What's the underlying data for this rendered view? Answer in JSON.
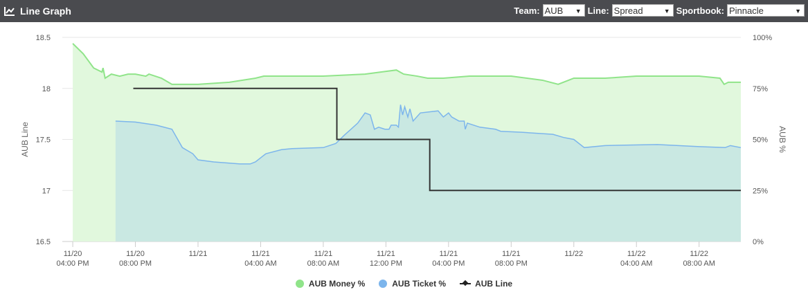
{
  "header": {
    "title": "Line Graph",
    "icon": "line-chart-icon",
    "team_label": "Team:",
    "team_value": "AUB",
    "line_label": "Line:",
    "line_value": "Spread",
    "sportsbook_label": "Sportbook:",
    "sportsbook_value": "Pinnacle"
  },
  "colors": {
    "money": "#90e48a",
    "money_fill": "#e1f8dd",
    "ticket": "#7cb5ec",
    "ticket_fill": "#c9e8e2",
    "line": "#333333",
    "header_bg": "#4a4b4f"
  },
  "chart_data": {
    "type": "line",
    "title": "",
    "xlabel": "",
    "ylabel": "AUB Line",
    "ylabel_right": "AUB %",
    "ylim": [
      16.5,
      18.5
    ],
    "y_ticks": [
      "18.5",
      "18",
      "17.5",
      "17",
      "16.5"
    ],
    "ylim_right": [
      0,
      100
    ],
    "y_ticks_right": [
      "100%",
      "75%",
      "50%",
      "25%",
      "0%"
    ],
    "x_range_hours": [
      -1,
      64
    ],
    "x_ticks": [
      {
        "t": 0,
        "l1": "11/20",
        "l2": "04:00 PM"
      },
      {
        "t": 6,
        "l1": "11/20",
        "l2": "08:00 PM"
      },
      {
        "t": 12,
        "l1": "11/21",
        "l2": ""
      },
      {
        "t": 18,
        "l1": "11/21",
        "l2": "04:00 AM"
      },
      {
        "t": 24,
        "l1": "11/21",
        "l2": "08:00 AM"
      },
      {
        "t": 30,
        "l1": "11/21",
        "l2": "12:00 PM"
      },
      {
        "t": 36,
        "l1": "11/21",
        "l2": "04:00 PM"
      },
      {
        "t": 42,
        "l1": "11/21",
        "l2": "08:00 PM"
      },
      {
        "t": 48,
        "l1": "11/22",
        "l2": ""
      },
      {
        "t": 54,
        "l1": "11/22",
        "l2": "04:00 AM"
      },
      {
        "t": 60,
        "l1": "11/22",
        "l2": "08:00 AM"
      }
    ],
    "grid": true,
    "legend_position": "bottom",
    "series": [
      {
        "name": "AUB Money %",
        "axis": "right",
        "points": [
          [
            0,
            97
          ],
          [
            1,
            92
          ],
          [
            2,
            85
          ],
          [
            2.8,
            83
          ],
          [
            2.9,
            85
          ],
          [
            3.1,
            80
          ],
          [
            3.7,
            82
          ],
          [
            4.5,
            81
          ],
          [
            5.3,
            82
          ],
          [
            6,
            82
          ],
          [
            7,
            81
          ],
          [
            7.3,
            82
          ],
          [
            8.5,
            80
          ],
          [
            9.5,
            77
          ],
          [
            12,
            77
          ],
          [
            15,
            78
          ],
          [
            17.5,
            80
          ],
          [
            18.3,
            81
          ],
          [
            21,
            81
          ],
          [
            24,
            81
          ],
          [
            28,
            82
          ],
          [
            29.5,
            83
          ],
          [
            31,
            84
          ],
          [
            31.7,
            82
          ],
          [
            33,
            81
          ],
          [
            34,
            80
          ],
          [
            35.5,
            80
          ],
          [
            38,
            81
          ],
          [
            42,
            81
          ],
          [
            45,
            79
          ],
          [
            46.5,
            77
          ],
          [
            47.5,
            79
          ],
          [
            48,
            80
          ],
          [
            51,
            80
          ],
          [
            54,
            81
          ],
          [
            60,
            81
          ],
          [
            62,
            80
          ],
          [
            62.4,
            77
          ],
          [
            62.8,
            78
          ],
          [
            64,
            78
          ]
        ]
      },
      {
        "name": "AUB Ticket %",
        "axis": "right",
        "points": [
          [
            4.1,
            59
          ],
          [
            6,
            58.5
          ],
          [
            8,
            57
          ],
          [
            9.5,
            55
          ],
          [
            10.5,
            46
          ],
          [
            11.5,
            43
          ],
          [
            12,
            40
          ],
          [
            13.5,
            39
          ],
          [
            16,
            38
          ],
          [
            17,
            38
          ],
          [
            17.5,
            39
          ],
          [
            18.5,
            43
          ],
          [
            20,
            45
          ],
          [
            21,
            45.5
          ],
          [
            24,
            46
          ],
          [
            25.2,
            48
          ],
          [
            26,
            52
          ],
          [
            27.3,
            58
          ],
          [
            28,
            63
          ],
          [
            28.5,
            62
          ],
          [
            28.9,
            55
          ],
          [
            29.3,
            56
          ],
          [
            29.9,
            55
          ],
          [
            30.3,
            55
          ],
          [
            30.5,
            57
          ],
          [
            31,
            57
          ],
          [
            31.2,
            56
          ],
          [
            31.4,
            67
          ],
          [
            31.6,
            62
          ],
          [
            31.8,
            66
          ],
          [
            32.1,
            61
          ],
          [
            32.3,
            65
          ],
          [
            32.6,
            59
          ],
          [
            33.3,
            63
          ],
          [
            35,
            64
          ],
          [
            35.5,
            61
          ],
          [
            36,
            63
          ],
          [
            36.3,
            61
          ],
          [
            37,
            59
          ],
          [
            37.5,
            59
          ],
          [
            37.6,
            55
          ],
          [
            37.8,
            58
          ],
          [
            39,
            56
          ],
          [
            40.5,
            55
          ],
          [
            41,
            54
          ],
          [
            43,
            53.5
          ],
          [
            46,
            52.5
          ],
          [
            47,
            51
          ],
          [
            48,
            50
          ],
          [
            49,
            46
          ],
          [
            51,
            47
          ],
          [
            56,
            47.5
          ],
          [
            58,
            47
          ],
          [
            60,
            46.5
          ],
          [
            62.5,
            46
          ],
          [
            63,
            47
          ],
          [
            64,
            46
          ]
        ]
      },
      {
        "name": "AUB Line",
        "axis": "left",
        "points": [
          [
            5.8,
            18
          ],
          [
            25.3,
            18
          ],
          [
            25.3,
            17.5
          ],
          [
            34.2,
            17.5
          ],
          [
            34.2,
            17
          ],
          [
            64,
            17
          ]
        ]
      }
    ]
  }
}
